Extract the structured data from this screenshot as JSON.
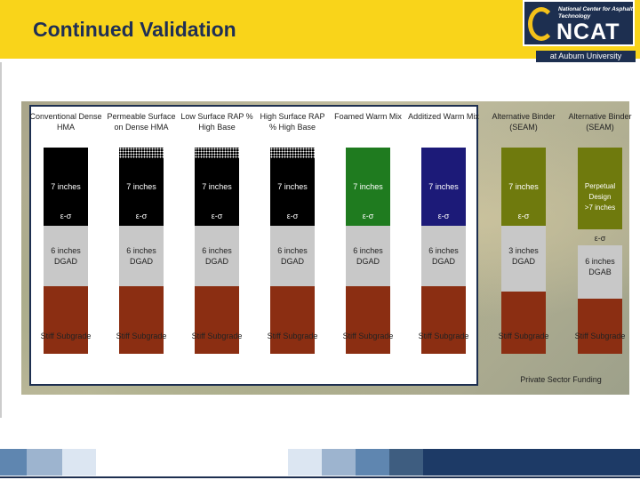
{
  "header": {
    "title": "Continued Validation",
    "logo_small_text": "National Center for Asphalt Technology",
    "logo_big_text": "NCAT",
    "subtitle": "at Auburn University"
  },
  "diagram": {
    "strain_symbol": "ε-σ",
    "columns": [
      {
        "title": "Conventional Dense HMA",
        "color": "#000000",
        "patterned_head": false,
        "surface": "7 inches",
        "base": "6 inches DGAD",
        "subgrade": "Stiff Subgrade"
      },
      {
        "title": "Permeable Surface on Dense HMA",
        "color": "#000000",
        "patterned_head": true,
        "surface": "7 inches",
        "base": "6 inches DGAD",
        "subgrade": "Stiff Subgrade"
      },
      {
        "title": "Low Surface RAP % High Base",
        "color": "#000000",
        "patterned_head": true,
        "surface": "7 inches",
        "base": "6 inches DGAD",
        "subgrade": "Stiff Subgrade"
      },
      {
        "title": "High Surface RAP % High Base",
        "color": "#000000",
        "patterned_head": true,
        "surface": "7 inches",
        "base": "6 inches DGAD",
        "subgrade": "Stiff Subgrade"
      },
      {
        "title": "Foamed Warm Mix",
        "color": "#1f7b1f",
        "patterned_head": false,
        "surface": "7 inches",
        "base": "6 inches DGAD",
        "subgrade": "Stiff Subgrade"
      },
      {
        "title": "Additized Warm Mix",
        "color": "#1c1a78",
        "patterned_head": false,
        "surface": "7 inches",
        "base": "6 inches DGAD",
        "subgrade": "Stiff Subgrade"
      },
      {
        "title": "Alternative Binder (SEAM)",
        "color": "#6f7a0d",
        "patterned_head": false,
        "surface": "7 inches",
        "base": "3 inches DGAD",
        "subgrade": "Stiff Subgrade"
      },
      {
        "title": "Alternative Binder (SEAM)",
        "color": "#6f7a0d",
        "patterned_head": false,
        "surface": "Perpetual Design >7 inches",
        "base": "6 inches DGAB",
        "subgrade": "Stiff Subgrade"
      }
    ],
    "footnote": "Private Sector Funding"
  },
  "footer_colors": [
    "#5f86b0",
    "#9db4cf",
    "#dce6f2",
    "#ffffff",
    "#dce6f2",
    "#9db4cf",
    "#5f86b0",
    "#3e5d80",
    "#1d3a66"
  ]
}
